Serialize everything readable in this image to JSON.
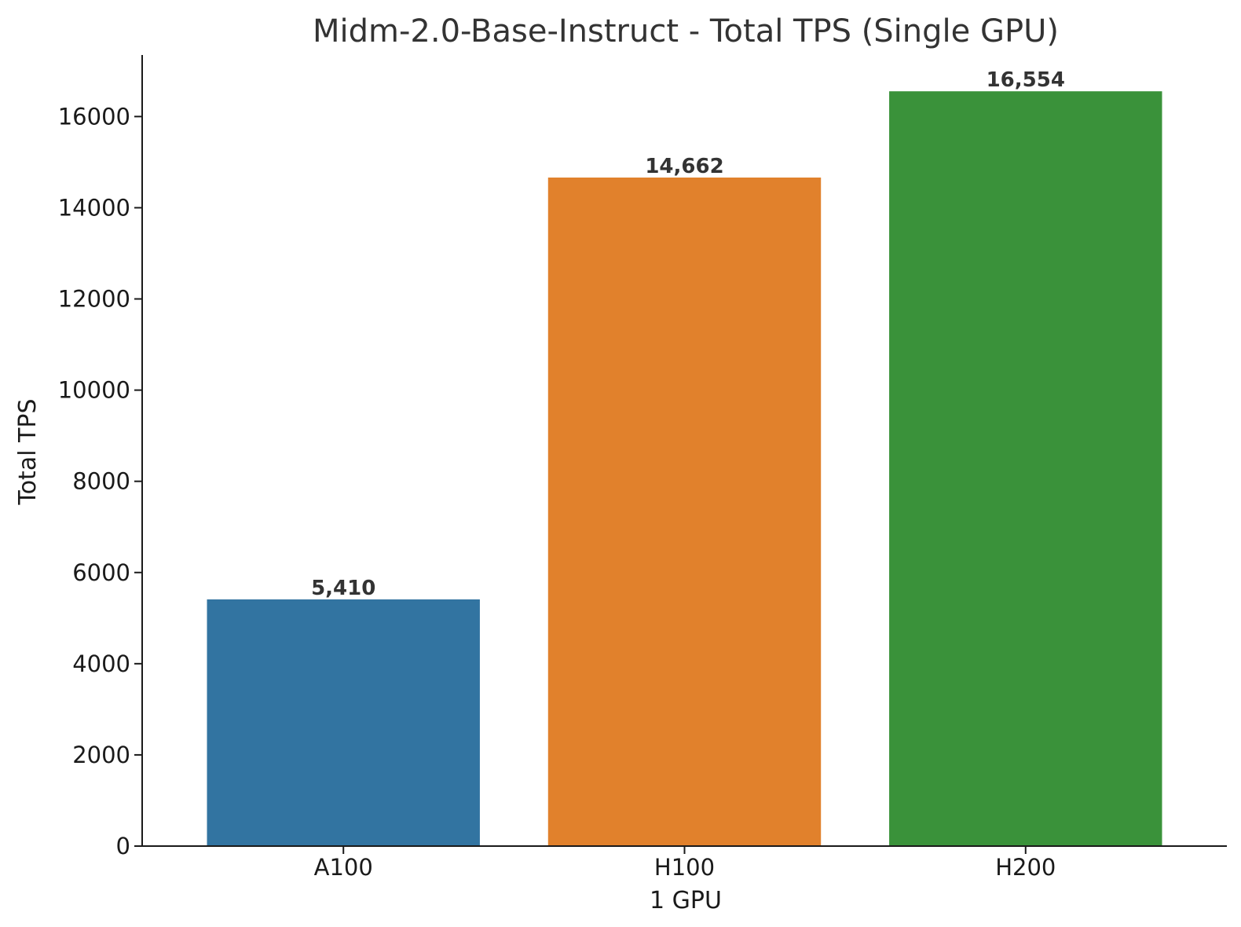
{
  "chart_data": {
    "type": "bar",
    "title": "Midm-2.0-Base-Instruct - Total TPS (Single GPU)",
    "xlabel": "1 GPU",
    "ylabel": "Total TPS",
    "categories": [
      "A100",
      "H100",
      "H200"
    ],
    "values": [
      5410,
      14662,
      16554
    ],
    "value_labels": [
      "5,410",
      "14,662",
      "16,554"
    ],
    "colors": [
      "#3274a1",
      "#e1812c",
      "#3a923a"
    ],
    "ylim": [
      0,
      17350
    ],
    "yticks": [
      0,
      2000,
      4000,
      6000,
      8000,
      10000,
      12000,
      14000,
      16000
    ],
    "ytick_labels": [
      "0",
      "2000",
      "4000",
      "6000",
      "8000",
      "10000",
      "12000",
      "14000",
      "16000"
    ],
    "grid": false,
    "legend": false
  }
}
